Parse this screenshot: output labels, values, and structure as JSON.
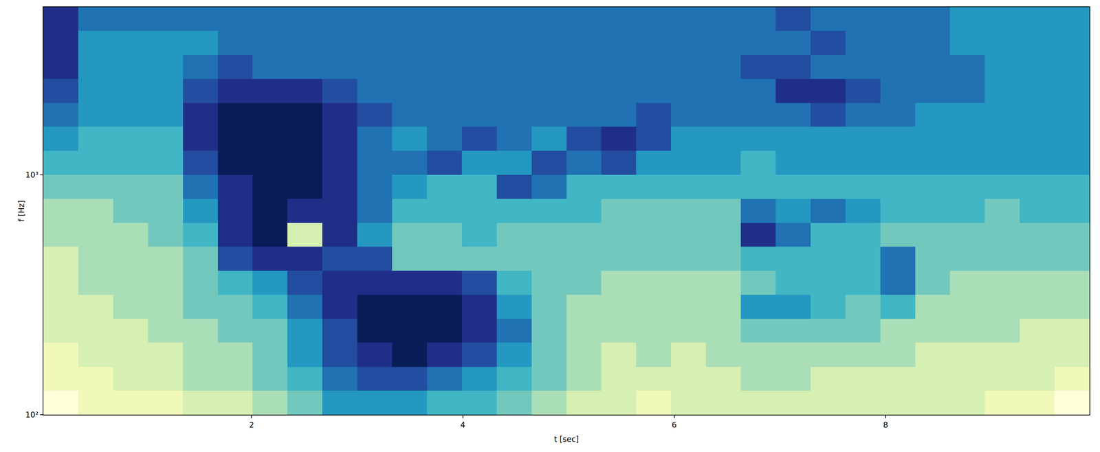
{
  "chart_data": {
    "type": "heatmap",
    "x_label": "t [sec]",
    "y_label": "f [Hz]",
    "log": "y",
    "x": [
      0.03,
      0.36,
      0.69,
      1.02,
      1.35,
      1.68,
      2.01,
      2.34,
      2.67,
      3.0,
      3.33,
      3.66,
      3.99,
      4.32,
      4.65,
      4.98,
      5.31,
      5.64,
      5.97,
      6.3,
      6.63,
      6.96,
      7.29,
      7.62,
      7.95,
      8.28,
      8.61,
      8.94,
      9.27,
      9.6,
      9.93
    ],
    "y": [
      100,
      126,
      158,
      200,
      251,
      316,
      398,
      501,
      631,
      794,
      1000,
      1259,
      1585,
      1995,
      2512,
      3162,
      3981,
      5000
    ],
    "z": [
      [
        10,
        9,
        9,
        9,
        8,
        8,
        7,
        6,
        4,
        4,
        4,
        5,
        5,
        6,
        7,
        8,
        8,
        9,
        8,
        8,
        8,
        8,
        8,
        8,
        8,
        8,
        8,
        9,
        9,
        10
      ],
      [
        9,
        9,
        8,
        8,
        7,
        7,
        6,
        5,
        3,
        2,
        2,
        3,
        4,
        5,
        6,
        7,
        8,
        8,
        8,
        8,
        7,
        7,
        8,
        8,
        8,
        8,
        8,
        8,
        8,
        9
      ],
      [
        9,
        8,
        8,
        8,
        7,
        7,
        6,
        4,
        2,
        1,
        0,
        1,
        2,
        4,
        6,
        7,
        8,
        7,
        8,
        7,
        7,
        7,
        7,
        7,
        7,
        8,
        8,
        8,
        8,
        8
      ],
      [
        8,
        8,
        8,
        7,
        7,
        6,
        6,
        4,
        2,
        0,
        0,
        0,
        1,
        3,
        6,
        7,
        7,
        7,
        7,
        7,
        6,
        6,
        6,
        6,
        7,
        7,
        7,
        7,
        8,
        8
      ],
      [
        8,
        8,
        7,
        7,
        6,
        6,
        5,
        3,
        1,
        0,
        0,
        0,
        1,
        4,
        6,
        7,
        7,
        7,
        7,
        7,
        4,
        4,
        5,
        6,
        5,
        7,
        7,
        7,
        7,
        7
      ],
      [
        8,
        7,
        7,
        7,
        6,
        5,
        4,
        2,
        1,
        1,
        1,
        1,
        2,
        5,
        6,
        6,
        7,
        7,
        7,
        7,
        6,
        5,
        5,
        5,
        3,
        6,
        7,
        7,
        7,
        7
      ],
      [
        8,
        7,
        7,
        7,
        6,
        2,
        1,
        1,
        2,
        2,
        6,
        6,
        6,
        6,
        6,
        6,
        6,
        6,
        6,
        6,
        5,
        5,
        5,
        5,
        3,
        6,
        6,
        6,
        6,
        6
      ],
      [
        7,
        7,
        7,
        6,
        5,
        1,
        0,
        8,
        1,
        4,
        6,
        6,
        5,
        6,
        6,
        6,
        6,
        6,
        6,
        6,
        1,
        3,
        5,
        5,
        6,
        6,
        6,
        6,
        6,
        6
      ],
      [
        7,
        7,
        6,
        6,
        4,
        1,
        0,
        1,
        1,
        3,
        5,
        5,
        5,
        5,
        5,
        5,
        6,
        6,
        6,
        6,
        3,
        4,
        3,
        4,
        5,
        5,
        5,
        6,
        5,
        5
      ],
      [
        6,
        6,
        6,
        6,
        3,
        1,
        0,
        0,
        1,
        3,
        4,
        5,
        5,
        2,
        3,
        5,
        5,
        5,
        5,
        5,
        5,
        5,
        5,
        5,
        5,
        5,
        5,
        5,
        5,
        5
      ],
      [
        5,
        5,
        5,
        5,
        2,
        0,
        0,
        0,
        1,
        3,
        3,
        2,
        4,
        4,
        2,
        3,
        2,
        4,
        4,
        4,
        5,
        4,
        4,
        4,
        4,
        4,
        4,
        4,
        4,
        4
      ],
      [
        4,
        5,
        5,
        5,
        1,
        0,
        0,
        0,
        1,
        3,
        4,
        3,
        2,
        3,
        4,
        2,
        1,
        2,
        4,
        4,
        4,
        4,
        4,
        4,
        4,
        4,
        4,
        4,
        4,
        4
      ],
      [
        3,
        4,
        4,
        4,
        1,
        0,
        0,
        0,
        1,
        2,
        3,
        3,
        3,
        3,
        3,
        3,
        3,
        2,
        3,
        3,
        3,
        3,
        2,
        3,
        3,
        4,
        4,
        4,
        4,
        4
      ],
      [
        2,
        4,
        4,
        4,
        2,
        1,
        1,
        1,
        2,
        3,
        3,
        3,
        3,
        3,
        3,
        3,
        3,
        3,
        3,
        3,
        3,
        1,
        1,
        2,
        3,
        3,
        3,
        4,
        4,
        4
      ],
      [
        1,
        4,
        4,
        4,
        3,
        2,
        3,
        3,
        3,
        3,
        3,
        3,
        3,
        3,
        3,
        3,
        3,
        3,
        3,
        3,
        2,
        2,
        3,
        3,
        3,
        3,
        3,
        4,
        4,
        4
      ],
      [
        1,
        4,
        4,
        4,
        4,
        3,
        3,
        3,
        3,
        3,
        3,
        3,
        3,
        3,
        3,
        3,
        3,
        3,
        3,
        3,
        3,
        3,
        2,
        3,
        3,
        3,
        4,
        4,
        4,
        4
      ],
      [
        1,
        3,
        3,
        3,
        3,
        3,
        3,
        3,
        3,
        3,
        3,
        3,
        3,
        3,
        3,
        3,
        3,
        3,
        3,
        3,
        3,
        2,
        3,
        3,
        3,
        3,
        4,
        4,
        4,
        4
      ]
    ],
    "xlim": [
      0.03,
      9.93
    ],
    "ylim": [
      100,
      5000
    ],
    "xticks": [
      2,
      4,
      6,
      8
    ],
    "yticks": [
      {
        "value": 100,
        "label": "10²"
      },
      {
        "value": 1000,
        "label": "10³"
      }
    ]
  }
}
